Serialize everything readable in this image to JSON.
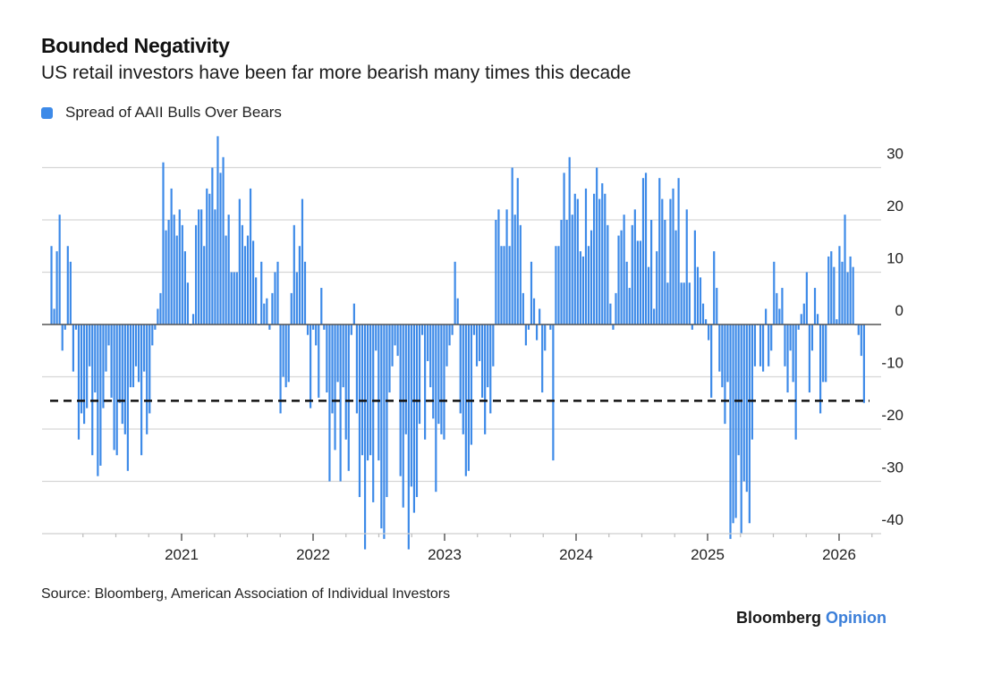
{
  "header": {
    "title": "Bounded Negativity",
    "subtitle": "US retail investors have been far more bearish many times this decade"
  },
  "footer": {
    "source": "Source: Bloomberg, American Association of Individual Investors",
    "brand_main": "Bloomberg",
    "brand_accent": "Opinion"
  },
  "colors": {
    "bar": "#3d8ae8",
    "brand_accent": "#3b7fd9",
    "threshold": "#111111"
  },
  "chart_data": {
    "type": "bar",
    "title": "Bounded Negativity",
    "subtitle": "US retail investors have been far more bearish many times this decade",
    "legend": [
      {
        "name": "Spread of AAII Bulls Over Bears",
        "color": "#3d8ae8"
      }
    ],
    "legend_placement": "top-left",
    "xlabel": "",
    "ylabel": "",
    "frequency": "weekly",
    "x_start": "2020-01",
    "x_end": "2026-03",
    "x_range_years": [
      2020.0,
      2026.2
    ],
    "x_ticks": [
      2021,
      2022,
      2023,
      2024,
      2025,
      2026
    ],
    "x_tick_labels": [
      "2021",
      "2022",
      "2023",
      "2024",
      "2025",
      "2026"
    ],
    "y_ticks": [
      30,
      20,
      10,
      0,
      -10,
      -20,
      -30,
      -40
    ],
    "y_tick_labels": [
      "30",
      "20",
      "10",
      "0",
      "-10",
      "-20",
      "-30",
      "-40"
    ],
    "ylim": [
      -43,
      36
    ],
    "y_axis_side": "right",
    "grid": true,
    "reference_line": {
      "value": -14.6,
      "style": "dashed"
    },
    "series": [
      {
        "name": "Spread of AAII Bulls Over Bears",
        "values": [
          15,
          3,
          14,
          21,
          -5,
          -1,
          15,
          12,
          -9,
          -1,
          -22,
          -17,
          -19,
          -16,
          -8,
          -25,
          -13,
          -29,
          -27,
          -16,
          -9,
          -4,
          -14,
          -24,
          -25,
          -15,
          -19,
          -21,
          -28,
          -12,
          -12,
          -8,
          -11,
          -25,
          -9,
          -21,
          -17,
          -4,
          -1,
          3,
          6,
          31,
          18,
          20,
          26,
          21,
          17,
          22,
          19,
          14,
          8,
          0,
          2,
          19,
          22,
          22,
          15,
          26,
          25,
          30,
          22,
          36,
          29,
          32,
          17,
          21,
          10,
          10,
          10,
          24,
          19,
          15,
          17,
          26,
          16,
          9,
          0,
          12,
          4,
          5,
          -1,
          6,
          10,
          12,
          -17,
          -10,
          -12,
          -11,
          6,
          19,
          10,
          15,
          24,
          12,
          -2,
          -16,
          -1,
          -4,
          -14,
          7,
          -1,
          -13,
          -30,
          -17,
          -24,
          -11,
          -30,
          -12,
          -22,
          -28,
          -2,
          4,
          -17,
          -33,
          -25,
          -43,
          -26,
          -25,
          -34,
          -5,
          -26,
          -39,
          -41,
          -33,
          -13,
          -8,
          -4,
          -6,
          -29,
          -35,
          -21,
          -43,
          -31,
          -36,
          -33,
          -19,
          -2,
          -22,
          -7,
          -12,
          -18,
          -32,
          -19,
          -21,
          -22,
          -8,
          -4,
          -2,
          12,
          5,
          -17,
          -21,
          -29,
          -28,
          -23,
          -2,
          -8,
          -7,
          -14,
          -21,
          -12,
          -17,
          -8,
          20,
          22,
          15,
          15,
          22,
          15,
          30,
          21,
          28,
          19,
          6,
          -4,
          -1,
          12,
          5,
          -3,
          3,
          -13,
          -5,
          0,
          -1,
          -26,
          15,
          15,
          20,
          29,
          20,
          32,
          21,
          25,
          24,
          14,
          13,
          26,
          15,
          18,
          25,
          30,
          24,
          27,
          25,
          19,
          4,
          -1,
          6,
          17,
          18,
          21,
          12,
          7,
          19,
          22,
          16,
          16,
          28,
          29,
          11,
          20,
          3,
          14,
          28,
          24,
          20,
          8,
          24,
          26,
          18,
          28,
          8,
          8,
          22,
          8,
          -1,
          18,
          11,
          9,
          4,
          1,
          -3,
          -14,
          14,
          7,
          -9,
          -12,
          -19,
          -11,
          -41,
          -38,
          -37,
          -25,
          -40,
          -30,
          -32,
          -38,
          -22,
          -8,
          0,
          -8,
          -9,
          3,
          -8,
          -5,
          12,
          6,
          3,
          7,
          -8,
          -13,
          -5,
          -11,
          -22,
          -1,
          2,
          4,
          10,
          -13,
          -5,
          7,
          2,
          -17,
          -11,
          -11,
          13,
          14,
          11,
          1,
          15,
          12,
          21,
          10,
          13,
          11,
          0,
          -2,
          -6,
          -15
        ]
      }
    ]
  }
}
